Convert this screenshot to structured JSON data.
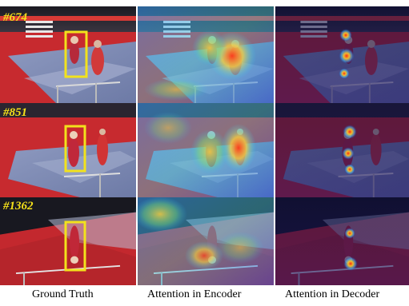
{
  "figure": {
    "frames": [
      "#674",
      "#851",
      "#1362"
    ],
    "columns": [
      "Ground Truth",
      "Attention in Encoder",
      "Attention in Decoder"
    ],
    "colors": {
      "bbox": "#f2e21c",
      "frame_label": "#f4e01a",
      "arena_red": "#c8282e",
      "mat_blue": "#7f8fb8"
    }
  }
}
